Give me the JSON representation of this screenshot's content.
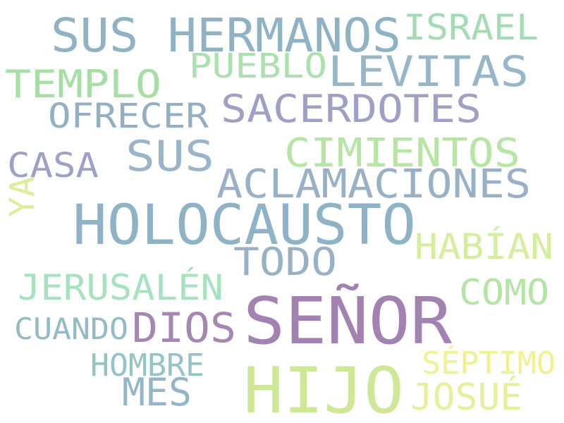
{
  "words": [
    {
      "text": "SUS HERMANOS",
      "color": "#8fb3c4"
    },
    {
      "text": "ISRAEL",
      "color": "#a3dcb2"
    },
    {
      "text": "LEVITAS",
      "color": "#97b7c9"
    },
    {
      "text": "PUEBLO",
      "color": "#abe1ad"
    },
    {
      "text": "TEMPLO",
      "color": "#a6dfa3"
    },
    {
      "text": "SACERDOTES",
      "color": "#a09fc6"
    },
    {
      "text": "OFRECER",
      "color": "#92afc4"
    },
    {
      "text": "CIMIENTOS",
      "color": "#b7e6a4"
    },
    {
      "text": "SUS",
      "color": "#9ab4c9"
    },
    {
      "text": "CASA",
      "color": "#9fa0c8"
    },
    {
      "text": "ACLAMACIONES",
      "color": "#98b1c6"
    },
    {
      "text": "YA",
      "color": "#dcee98"
    },
    {
      "text": "HOLOCAUSTO",
      "color": "#8fb3c6"
    },
    {
      "text": "HABÍAN",
      "color": "#d5ee9e"
    },
    {
      "text": "TODO",
      "color": "#98b1c7"
    },
    {
      "text": "JERUSALÉN",
      "color": "#a6e2bd"
    },
    {
      "text": "COMO",
      "color": "#b3e6a3"
    },
    {
      "text": "SEÑOR",
      "color": "#a282b1"
    },
    {
      "text": "CUANDO",
      "color": "#94bbc4"
    },
    {
      "text": "DIOS",
      "color": "#a587b3"
    },
    {
      "text": "HOMBRE",
      "color": "#93c4c6"
    },
    {
      "text": "SÉPTIMO",
      "color": "#f1f28f"
    },
    {
      "text": "MES",
      "color": "#95b6c9"
    },
    {
      "text": "HIJO",
      "color": "#cfe898"
    },
    {
      "text": "JOSUÉ",
      "color": "#e8ef9a"
    }
  ]
}
